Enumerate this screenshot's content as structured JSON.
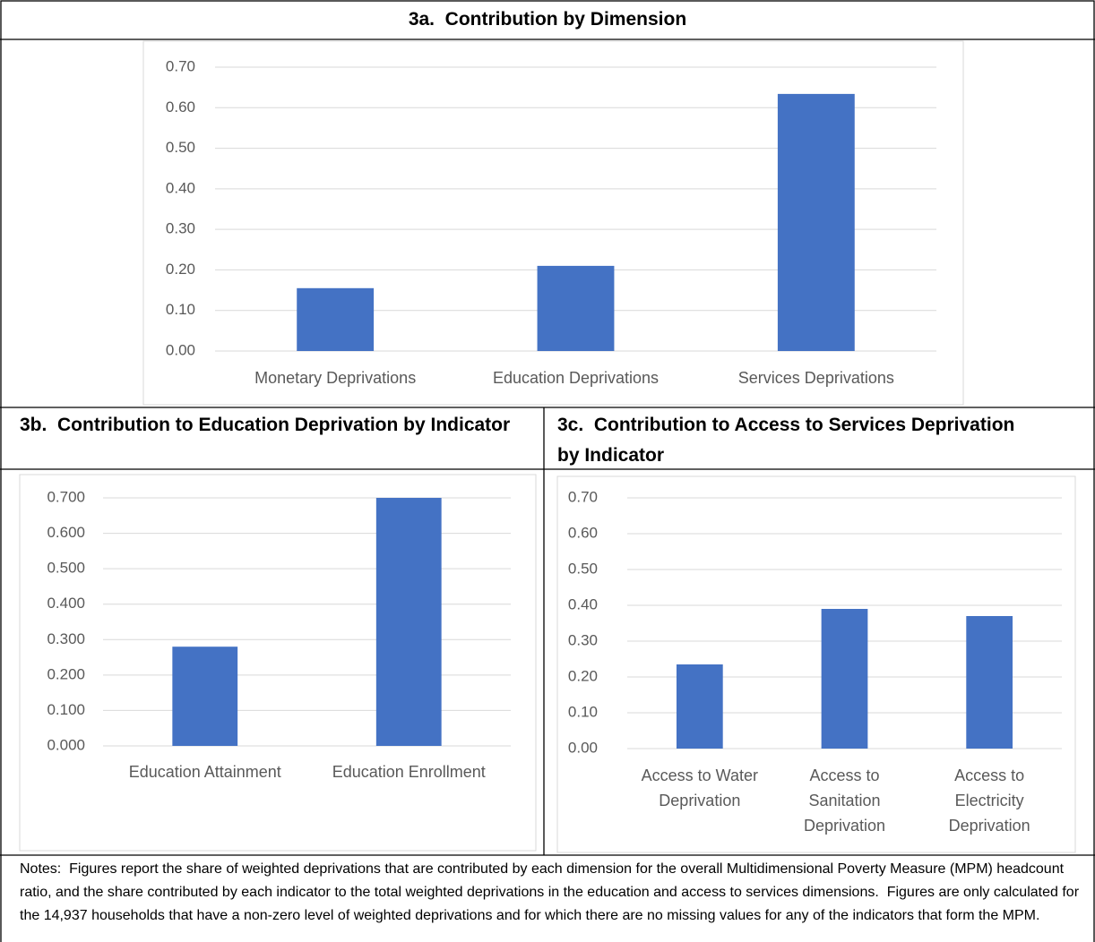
{
  "chart_data": [
    {
      "type": "bar",
      "title": "3a.  Contribution by Dimension",
      "categories": [
        "Monetary Deprivations",
        "Education Deprivations",
        "Services Deprivations"
      ],
      "values": [
        0.155,
        0.21,
        0.634
      ],
      "color": "#4472c4",
      "ylim": [
        0,
        0.7
      ],
      "yticks": [
        {
          "value": 0,
          "label": "0.00"
        },
        {
          "value": 0.1,
          "label": "0.10"
        },
        {
          "value": 0.2,
          "label": "0.20"
        },
        {
          "value": 0.3,
          "label": "0.30"
        },
        {
          "value": 0.4,
          "label": "0.40"
        },
        {
          "value": 0.5,
          "label": "0.50"
        },
        {
          "value": 0.6,
          "label": "0.60"
        },
        {
          "value": 0.7,
          "label": "0.70"
        }
      ],
      "grid": true
    },
    {
      "type": "bar",
      "title": "3b.  Contribution to Education Deprivation by Indicator",
      "categories": [
        "Education Attainment",
        "Education Enrollment"
      ],
      "values": [
        0.28,
        0.7
      ],
      "color": "#4472c4",
      "ylim": [
        0,
        0.7
      ],
      "yticks": [
        {
          "value": 0,
          "label": "0.000"
        },
        {
          "value": 0.1,
          "label": "0.100"
        },
        {
          "value": 0.2,
          "label": "0.200"
        },
        {
          "value": 0.3,
          "label": "0.300"
        },
        {
          "value": 0.4,
          "label": "0.400"
        },
        {
          "value": 0.5,
          "label": "0.500"
        },
        {
          "value": 0.6,
          "label": "0.600"
        },
        {
          "value": 0.7,
          "label": "0.700"
        }
      ],
      "grid": true
    },
    {
      "type": "bar",
      "title": "3c.  Contribution to Access to Services Deprivation by Indicator",
      "categories": [
        "Access to Water Deprivation",
        "Access to Sanitation Deprivation",
        "Access to Electricity Deprivation"
      ],
      "values": [
        0.235,
        0.39,
        0.37
      ],
      "color": "#4472c4",
      "ylim": [
        0,
        0.7
      ],
      "yticks": [
        {
          "value": 0,
          "label": "0.00"
        },
        {
          "value": 0.1,
          "label": "0.10"
        },
        {
          "value": 0.2,
          "label": "0.20"
        },
        {
          "value": 0.3,
          "label": "0.30"
        },
        {
          "value": 0.4,
          "label": "0.40"
        },
        {
          "value": 0.5,
          "label": "0.50"
        },
        {
          "value": 0.6,
          "label": "0.60"
        },
        {
          "value": 0.7,
          "label": "0.70"
        }
      ],
      "grid": true
    }
  ],
  "notes": "Notes:  Figures report the share of weighted deprivations that are contributed by each dimension for the overall Multidimensional Poverty Measure (MPM) headcount ratio, and the share contributed by each indicator to the total weighted deprivations in the education and access to services dimensions.  Figures are only calculated for the 14,937 households that have a non-zero level of weighted deprivations and for which there are no missing values for any of the indicators that form the MPM."
}
